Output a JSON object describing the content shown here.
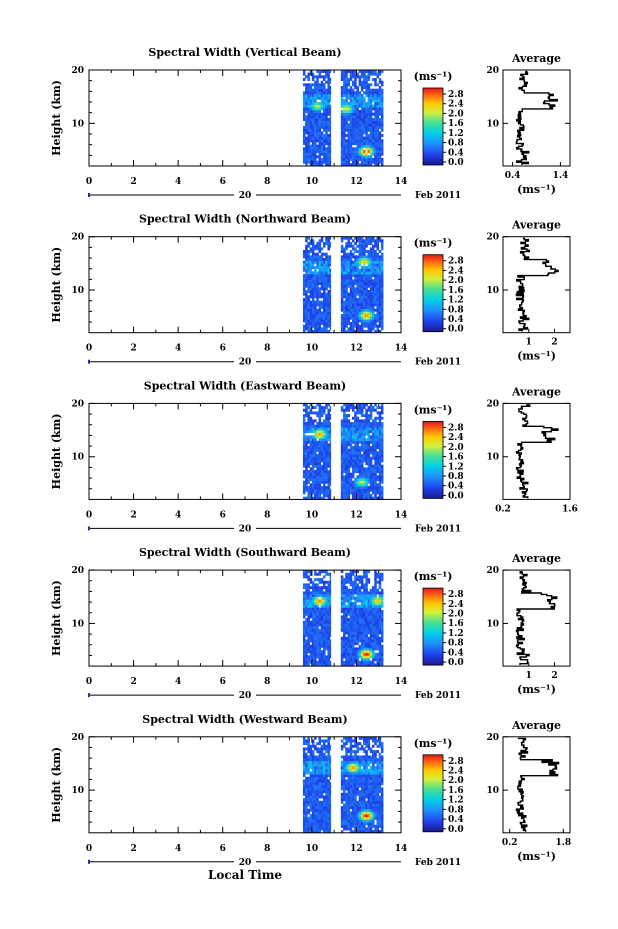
{
  "figure": {
    "xlabel_bottom": "Local Time",
    "date_label_day": "20",
    "date_label_month_year": "Feb 2011"
  },
  "chart_data": [
    {
      "type": "heatmap",
      "title": "Spectral Width (Vertical Beam)",
      "ylabel": "Height (km)",
      "xlim": [
        0,
        14
      ],
      "ylim": [
        2,
        20
      ],
      "x_ticks": [
        0,
        2,
        4,
        6,
        8,
        10,
        12,
        14
      ],
      "y_ticks": [
        10,
        20
      ],
      "data_time_ranges": [
        [
          9.6,
          10.85
        ],
        [
          11.3,
          13.2
        ]
      ],
      "hotspots": [
        {
          "t": 12.4,
          "h": 4.5,
          "v": 3.0
        },
        {
          "t": 11.5,
          "h": 12.5,
          "v": 2.2
        },
        {
          "t": 10.2,
          "h": 13.0,
          "v": 2.0
        }
      ],
      "colorbar": {
        "unit": "(ms⁻¹)",
        "ticks": [
          "2.8",
          "2.4",
          "2.0",
          "1.6",
          "1.2",
          "0.8",
          "0.4",
          "0.0"
        ]
      },
      "average_profile": {
        "title": "Average",
        "xlabel": "(ms⁻¹)",
        "x_ticks": [
          "0.4",
          "1.4"
        ],
        "xlim": [
          0.2,
          1.6
        ],
        "y_ticks": [
          10,
          20
        ],
        "ylim": [
          2,
          20
        ]
      }
    },
    {
      "type": "heatmap",
      "title": "Spectral Width (Northward Beam)",
      "ylabel": "Height (km)",
      "xlim": [
        0,
        14
      ],
      "ylim": [
        2,
        20
      ],
      "x_ticks": [
        0,
        2,
        4,
        6,
        8,
        10,
        12,
        14
      ],
      "y_ticks": [
        10,
        20
      ],
      "data_time_ranges": [
        [
          9.6,
          10.85
        ],
        [
          11.3,
          13.2
        ]
      ],
      "hotspots": [
        {
          "t": 12.4,
          "h": 5.0,
          "v": 2.6
        },
        {
          "t": 12.3,
          "h": 15.0,
          "v": 2.4
        }
      ],
      "colorbar": {
        "unit": "(ms⁻¹)",
        "ticks": [
          "2.8",
          "2.4",
          "2.0",
          "1.6",
          "1.2",
          "0.8",
          "0.4",
          "0.0"
        ]
      },
      "average_profile": {
        "title": "Average",
        "xlabel": "(ms⁻¹)",
        "x_ticks": [
          "1",
          "2"
        ],
        "xlim": [
          0,
          2.6
        ],
        "y_ticks": [
          10,
          20
        ],
        "ylim": [
          2,
          20
        ]
      }
    },
    {
      "type": "heatmap",
      "title": "Spectral Width (Eastward Beam)",
      "ylabel": "Height (km)",
      "xlim": [
        0,
        14
      ],
      "ylim": [
        2,
        20
      ],
      "x_ticks": [
        0,
        2,
        4,
        6,
        8,
        10,
        12,
        14
      ],
      "y_ticks": [
        10,
        20
      ],
      "data_time_ranges": [
        [
          9.6,
          10.85
        ],
        [
          11.3,
          13.2
        ]
      ],
      "hotspots": [
        {
          "t": 10.3,
          "h": 14.0,
          "v": 2.6
        },
        {
          "t": 12.2,
          "h": 5.0,
          "v": 2.0
        }
      ],
      "colorbar": {
        "unit": "(ms⁻¹)",
        "ticks": [
          "2.8",
          "2.4",
          "2.0",
          "1.6",
          "1.2",
          "0.8",
          "0.4",
          "0.0"
        ]
      },
      "average_profile": {
        "title": "Average",
        "xlabel": "",
        "x_ticks": [
          "0.2",
          "1.6"
        ],
        "xlim": [
          0.2,
          1.6
        ],
        "y_ticks": [
          10,
          20
        ],
        "ylim": [
          2,
          20
        ]
      }
    },
    {
      "type": "heatmap",
      "title": "Spectral Width (Southward Beam)",
      "ylabel": "Height (km)",
      "xlim": [
        0,
        14
      ],
      "ylim": [
        2,
        20
      ],
      "x_ticks": [
        0,
        2,
        4,
        6,
        8,
        10,
        12,
        14
      ],
      "y_ticks": [
        10,
        20
      ],
      "data_time_ranges": [
        [
          9.6,
          10.85
        ],
        [
          11.3,
          13.2
        ]
      ],
      "hotspots": [
        {
          "t": 12.4,
          "h": 4.0,
          "v": 3.0
        },
        {
          "t": 10.3,
          "h": 14.0,
          "v": 2.6
        },
        {
          "t": 12.9,
          "h": 14.0,
          "v": 2.4
        }
      ],
      "colorbar": {
        "unit": "(ms⁻¹)",
        "ticks": [
          "2.8",
          "2.4",
          "2.0",
          "1.6",
          "1.2",
          "0.8",
          "0.4",
          "0.0"
        ]
      },
      "average_profile": {
        "title": "Average",
        "xlabel": "(ms⁻¹)",
        "x_ticks": [
          "1",
          "2"
        ],
        "xlim": [
          0,
          2.6
        ],
        "y_ticks": [
          10,
          20
        ],
        "ylim": [
          2,
          20
        ]
      }
    },
    {
      "type": "heatmap",
      "title": "Spectral Width (Westward Beam)",
      "ylabel": "Height (km)",
      "xlim": [
        0,
        14
      ],
      "ylim": [
        2,
        20
      ],
      "x_ticks": [
        0,
        2,
        4,
        6,
        8,
        10,
        12,
        14
      ],
      "y_ticks": [
        10,
        20
      ],
      "data_time_ranges": [
        [
          9.6,
          10.85
        ],
        [
          11.3,
          13.2
        ]
      ],
      "hotspots": [
        {
          "t": 12.4,
          "h": 5.0,
          "v": 3.0
        },
        {
          "t": 11.8,
          "h": 14.0,
          "v": 2.6
        }
      ],
      "colorbar": {
        "unit": "(ms⁻¹)",
        "ticks": [
          "2.8",
          "2.4",
          "2.0",
          "1.6",
          "1.2",
          "0.8",
          "0.4",
          "0.0"
        ]
      },
      "average_profile": {
        "title": "Average",
        "xlabel": "(ms⁻¹)",
        "x_ticks": [
          "0.2",
          "1.8"
        ],
        "xlim": [
          0,
          2.0
        ],
        "y_ticks": [
          10,
          20
        ],
        "ylim": [
          2,
          20
        ]
      }
    }
  ]
}
